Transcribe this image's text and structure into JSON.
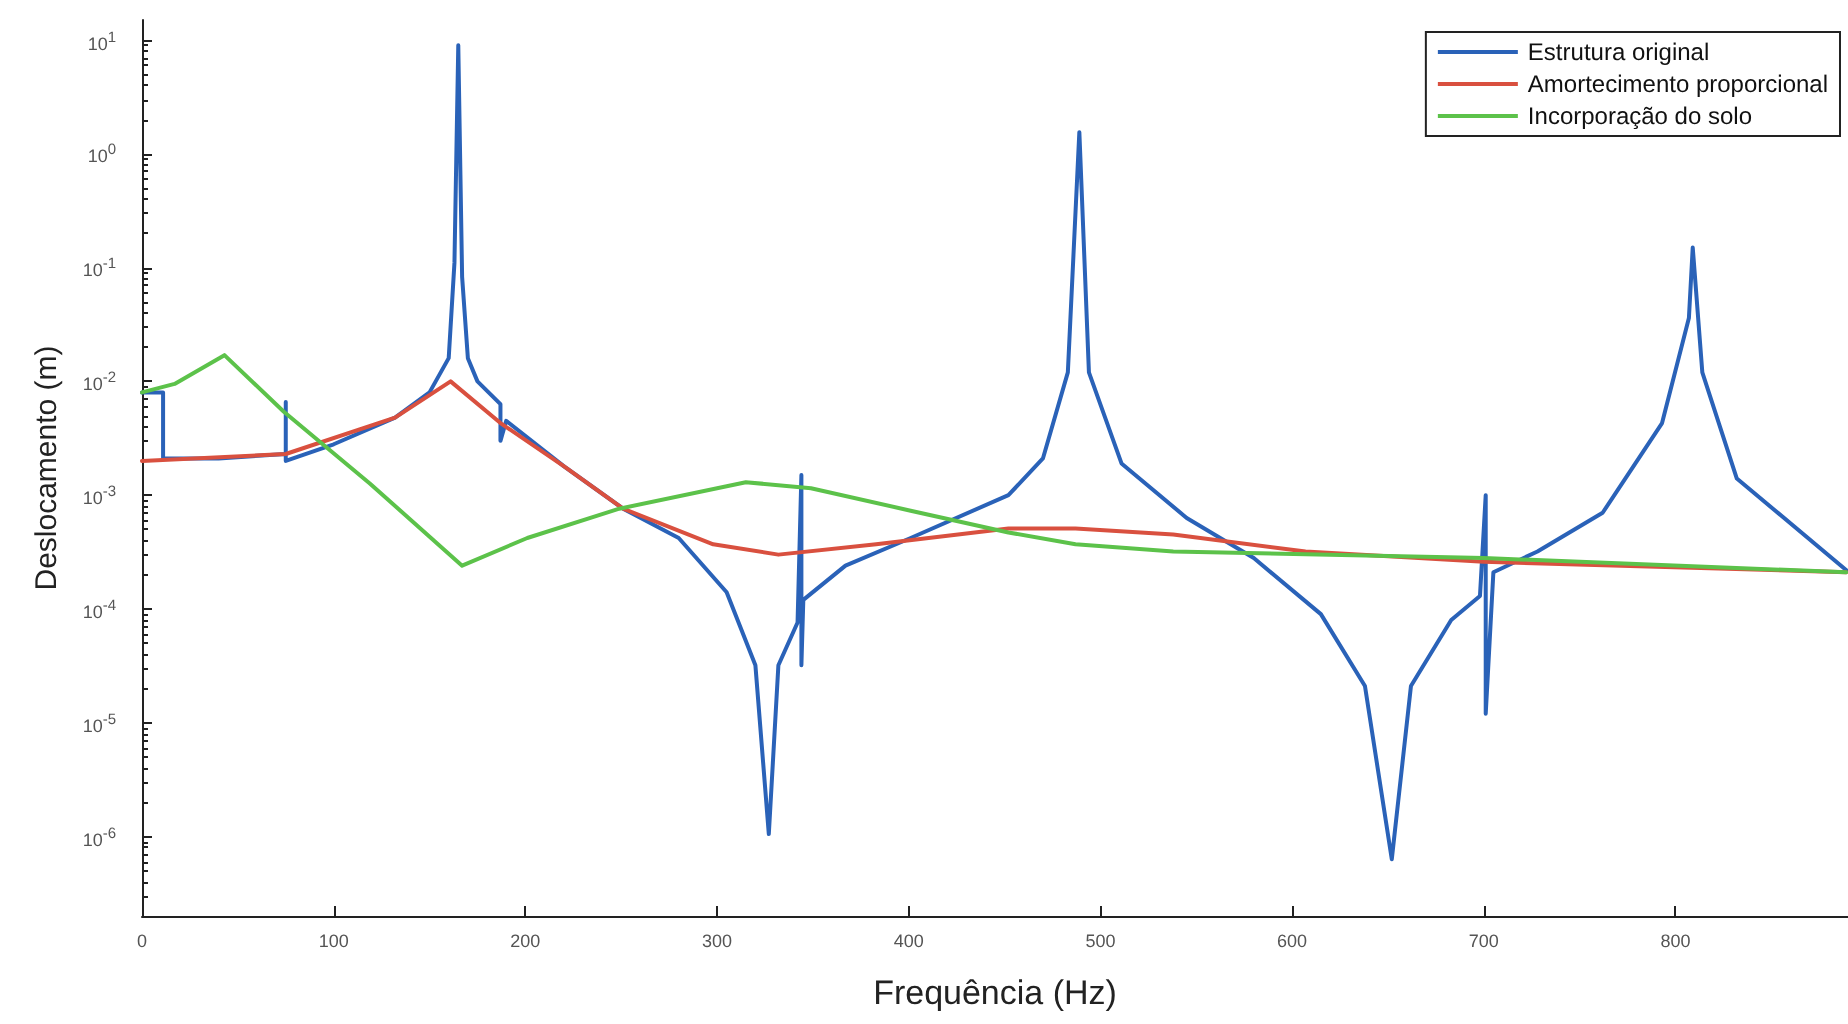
{
  "chart_data": {
    "type": "line",
    "xlabel": "Frequência (Hz)",
    "ylabel": "Deslocamento (m)",
    "log": "y",
    "grid": false,
    "legend": "top right",
    "marker": "none",
    "line_style": "solid",
    "xlim": [
      0,
      890
    ],
    "xticks": [
      0,
      100,
      200,
      300,
      400,
      500,
      600,
      700,
      800
    ],
    "ylim": [
      2e-07,
      15
    ],
    "yticks": [
      {
        "value": 10,
        "label": "10$^{1}$"
      },
      {
        "value": 1,
        "label": "10$^{0}$"
      },
      {
        "value": 0.1,
        "label": "10$^{-1}$"
      },
      {
        "value": 0.01,
        "label": "10$^{-2}$"
      },
      {
        "value": 0.001,
        "label": "10$^{-3}$"
      },
      {
        "value": 0.0001,
        "label": "10$^{-4}$"
      },
      {
        "value": 1e-05,
        "label": "10$^{-5}$"
      },
      {
        "value": 1e-06,
        "label": "10$^{-6}$"
      }
    ],
    "series": [
      {
        "name": "Estrutura original",
        "color": "#2a62b8",
        "x": [
          0,
          11,
          11,
          11,
          40,
          75,
          75,
          75,
          100,
          132,
          150,
          160,
          163,
          165,
          167,
          170,
          175,
          187,
          187,
          190,
          220,
          251,
          280,
          305,
          320,
          327,
          332,
          342,
          344,
          344,
          345,
          367,
          401,
          452,
          470,
          483,
          489,
          494,
          511,
          545,
          580,
          615,
          638,
          652,
          662,
          683,
          698,
          701,
          701,
          705,
          728,
          762,
          793,
          807,
          809,
          814,
          832,
          889
        ],
        "values": [
          0.008,
          0.008,
          0.0021,
          0.0021,
          0.0021,
          0.0023,
          0.0066,
          0.002,
          0.0028,
          0.0048,
          0.008,
          0.016,
          0.11,
          9,
          0.083,
          0.016,
          0.01,
          0.0063,
          0.003,
          0.0045,
          0.0018,
          0.00076,
          0.00042,
          0.00014,
          3.2e-05,
          1.05e-06,
          3.2e-05,
          7.6e-05,
          0.0015,
          3.2e-05,
          0.00012,
          0.00024,
          0.00042,
          0.001,
          0.0021,
          0.012,
          1.55,
          0.012,
          0.0019,
          0.00063,
          0.00028,
          9e-05,
          2.1e-05,
          6.3e-07,
          2.1e-05,
          8e-05,
          0.00013,
          0.001,
          1.2e-05,
          0.00021,
          0.00032,
          0.0007,
          0.0043,
          0.036,
          0.15,
          0.012,
          0.0014,
          0.00022
        ]
      },
      {
        "name": "Amortecimento proporcional",
        "color": "#d9503f",
        "x": [
          0,
          75,
          132,
          161,
          187,
          220,
          251,
          298,
          332,
          383,
          452,
          487,
          538,
          607,
          700,
          889
        ],
        "values": [
          0.002,
          0.0023,
          0.0048,
          0.01,
          0.0043,
          0.0018,
          0.00076,
          0.00037,
          0.0003,
          0.00037,
          0.00051,
          0.00051,
          0.00045,
          0.00032,
          0.00026,
          0.00021
        ]
      },
      {
        "name": "Incorporação do solo",
        "color": "#5cc24a",
        "x": [
          0,
          17,
          43,
          74,
          119,
          167,
          201,
          249,
          315,
          349,
          401,
          452,
          487,
          538,
          700,
          889
        ],
        "values": [
          0.008,
          0.0095,
          0.017,
          0.0054,
          0.00126,
          0.00024,
          0.00042,
          0.00076,
          0.0013,
          0.00115,
          0.00073,
          0.00047,
          0.00037,
          0.00032,
          0.00028,
          0.00021
        ]
      }
    ]
  }
}
